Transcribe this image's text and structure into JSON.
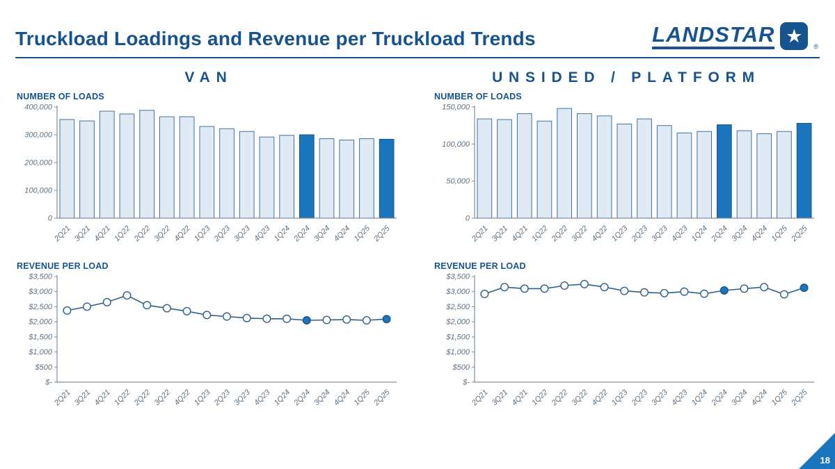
{
  "header": {
    "title": "Truckload Loadings and Revenue per Truckload Trends",
    "logo_text": "LANDSTAR",
    "logo_reg": "®"
  },
  "footer": {
    "page_number": "18"
  },
  "sections": {
    "van": {
      "title": "VAN",
      "loads_label": "NUMBER OF LOADS",
      "revenue_label": "REVENUE PER LOAD"
    },
    "platform": {
      "title": "UNSIDED / PLATFORM",
      "loads_label": "NUMBER OF LOADS",
      "revenue_label": "REVENUE PER LOAD"
    }
  },
  "colors": {
    "accent": "#17538f",
    "bar_fill": "#dfeaf5",
    "bar_stroke": "#41719c",
    "highlight": "#1b75bc",
    "highlight_stroke": "#16568c",
    "line": "#2e5e8e",
    "axis": "#7f8f9f",
    "tick_text": "#5d7183"
  },
  "chart_data": [
    {
      "id": "van_loads",
      "type": "bar",
      "title": "Van – Number of Loads",
      "xlabel": "",
      "ylabel": "",
      "grid": false,
      "legend": "none",
      "categories": [
        "2Q21",
        "3Q21",
        "4Q21",
        "1Q22",
        "2Q22",
        "3Q22",
        "4Q22",
        "1Q23",
        "2Q23",
        "3Q23",
        "4Q23",
        "1Q24",
        "2Q24",
        "3Q24",
        "4Q24",
        "1Q25",
        "2Q25"
      ],
      "values": [
        355000,
        350000,
        385000,
        375000,
        388000,
        365000,
        365000,
        330000,
        322000,
        312000,
        292000,
        298000,
        300000,
        286000,
        281000,
        286000,
        284000
      ],
      "highlight_indices": [
        12,
        16
      ],
      "ylim": [
        0,
        400000
      ],
      "ytick_values": [
        0,
        100000,
        200000,
        300000,
        400000
      ],
      "ytick_labels": [
        "0",
        "100,000",
        "200,000",
        "300,000",
        "400,000"
      ]
    },
    {
      "id": "platform_loads",
      "type": "bar",
      "title": "Unsided / Platform – Number of Loads",
      "xlabel": "",
      "ylabel": "",
      "grid": false,
      "legend": "none",
      "categories": [
        "2Q21",
        "3Q21",
        "4Q21",
        "1Q22",
        "2Q22",
        "3Q22",
        "4Q22",
        "1Q23",
        "2Q23",
        "3Q23",
        "4Q23",
        "1Q24",
        "2Q24",
        "3Q24",
        "4Q24",
        "1Q25",
        "2Q25"
      ],
      "values": [
        134000,
        133000,
        141000,
        131000,
        148000,
        141000,
        138000,
        127000,
        134000,
        125000,
        115000,
        117000,
        126000,
        118000,
        114000,
        117000,
        128000
      ],
      "highlight_indices": [
        12,
        16
      ],
      "ylim": [
        0,
        150000
      ],
      "ytick_values": [
        0,
        50000,
        100000,
        150000
      ],
      "ytick_labels": [
        "0",
        "50,000",
        "100,000",
        "150,000"
      ]
    },
    {
      "id": "van_revenue",
      "type": "line",
      "title": "Van – Revenue per Load",
      "xlabel": "",
      "ylabel": "",
      "grid": false,
      "legend": "none",
      "categories": [
        "2Q21",
        "3Q21",
        "4Q21",
        "1Q22",
        "2Q22",
        "3Q22",
        "4Q22",
        "1Q23",
        "2Q23",
        "3Q23",
        "4Q23",
        "1Q24",
        "2Q24",
        "3Q24",
        "4Q24",
        "1Q25",
        "2Q25"
      ],
      "values": [
        2375,
        2500,
        2650,
        2875,
        2550,
        2450,
        2350,
        2225,
        2175,
        2125,
        2100,
        2100,
        2050,
        2060,
        2075,
        2050,
        2090
      ],
      "highlight_indices": [
        12,
        16
      ],
      "ylim": [
        0,
        3500
      ],
      "ytick_values": [
        0,
        500,
        1000,
        1500,
        2000,
        2500,
        3000,
        3500
      ],
      "ytick_labels": [
        "$-",
        "$500",
        "$1,000",
        "$1,500",
        "$2,000",
        "$2,500",
        "$3,000",
        "$3,500"
      ]
    },
    {
      "id": "platform_revenue",
      "type": "line",
      "title": "Unsided / Platform – Revenue per Load",
      "xlabel": "",
      "ylabel": "",
      "grid": false,
      "legend": "none",
      "categories": [
        "2Q21",
        "3Q21",
        "4Q21",
        "1Q22",
        "2Q22",
        "3Q22",
        "4Q22",
        "1Q23",
        "2Q23",
        "3Q23",
        "4Q23",
        "1Q24",
        "2Q24",
        "3Q24",
        "4Q24",
        "1Q25",
        "2Q25"
      ],
      "values": [
        2925,
        3150,
        3100,
        3100,
        3200,
        3250,
        3150,
        3025,
        2975,
        2950,
        3000,
        2930,
        3040,
        3100,
        3150,
        2910,
        3130
      ],
      "highlight_indices": [
        12,
        16
      ],
      "ylim": [
        0,
        3500
      ],
      "ytick_values": [
        0,
        500,
        1000,
        1500,
        2000,
        2500,
        3000,
        3500
      ],
      "ytick_labels": [
        "$-",
        "$500",
        "$1,000",
        "$1,500",
        "$2,000",
        "$2,500",
        "$3,000",
        "$3,500"
      ]
    }
  ]
}
